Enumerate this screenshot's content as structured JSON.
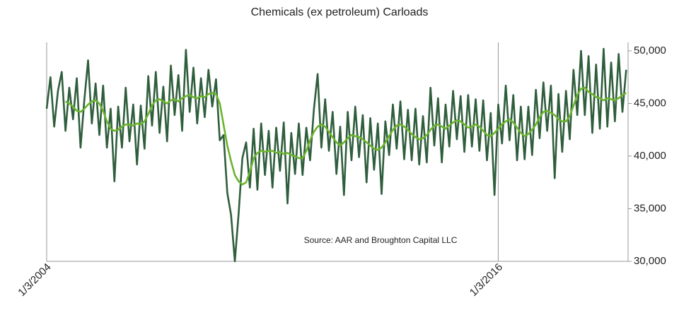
{
  "chart_data": {
    "type": "line",
    "title": "Chemicals  (ex petroleum) Carloads",
    "annotation": "Source: AAR and Broughton Capital LLC",
    "x": [
      2004,
      2004.1,
      2004.2,
      2004.3,
      2004.4,
      2004.5,
      2004.6,
      2004.7,
      2004.8,
      2004.9,
      2005,
      2005.1,
      2005.2,
      2005.3,
      2005.4,
      2005.5,
      2005.6,
      2005.7,
      2005.8,
      2005.9,
      2006,
      2006.1,
      2006.2,
      2006.3,
      2006.4,
      2006.5,
      2006.6,
      2006.7,
      2006.8,
      2006.9,
      2007,
      2007.1,
      2007.2,
      2007.3,
      2007.4,
      2007.5,
      2007.6,
      2007.7,
      2007.8,
      2007.9,
      2008,
      2008.1,
      2008.2,
      2008.3,
      2008.4,
      2008.5,
      2008.6,
      2008.7,
      2008.8,
      2008.9,
      2009,
      2009.1,
      2009.2,
      2009.3,
      2009.4,
      2009.5,
      2009.6,
      2009.7,
      2009.8,
      2009.9,
      2010,
      2010.1,
      2010.2,
      2010.3,
      2010.4,
      2010.5,
      2010.6,
      2010.7,
      2010.8,
      2010.9,
      2011,
      2011.1,
      2011.2,
      2011.3,
      2011.4,
      2011.5,
      2011.6,
      2011.7,
      2011.8,
      2011.9,
      2012,
      2012.1,
      2012.2,
      2012.3,
      2012.4,
      2012.5,
      2012.6,
      2012.7,
      2012.8,
      2012.9,
      2013,
      2013.1,
      2013.2,
      2013.3,
      2013.4,
      2013.5,
      2013.6,
      2013.7,
      2013.8,
      2013.9,
      2014,
      2014.1,
      2014.2,
      2014.3,
      2014.4,
      2014.5,
      2014.6,
      2014.7,
      2014.8,
      2014.9,
      2015,
      2015.1,
      2015.2,
      2015.3,
      2015.4,
      2015.5,
      2015.6,
      2015.7,
      2015.8,
      2015.9,
      2016,
      2016.1,
      2016.2,
      2016.3,
      2016.4,
      2016.5,
      2016.6,
      2016.7,
      2016.8,
      2016.9,
      2017,
      2017.1,
      2017.2,
      2017.3,
      2017.4,
      2017.5,
      2017.6,
      2017.7,
      2017.8,
      2017.9,
      2018,
      2018.1,
      2018.2,
      2018.3,
      2018.4,
      2018.5,
      2018.6,
      2018.7,
      2018.8,
      2018.9,
      2019,
      2019.1,
      2019.2,
      2019.3,
      2019.4
    ],
    "series": [
      {
        "color": "#2f5e3c",
        "values": [
          44500,
          47500,
          42800,
          46200,
          48000,
          42400,
          46500,
          43500,
          47400,
          40800,
          45300,
          49100,
          43100,
          46900,
          42000,
          46700,
          40800,
          44500,
          37600,
          44700,
          40800,
          46500,
          41400,
          44900,
          39200,
          44800,
          40700,
          47600,
          42900,
          48000,
          42200,
          46600,
          41400,
          48600,
          43900,
          47700,
          42400,
          50100,
          44200,
          48400,
          43100,
          47400,
          43700,
          48200,
          44700,
          47300,
          41500,
          42000,
          36500,
          34400,
          30000,
          34500,
          39800,
          41300,
          37000,
          42600,
          36800,
          43100,
          38200,
          42400,
          37000,
          42700,
          38600,
          43200,
          35500,
          42200,
          38300,
          43100,
          38200,
          42700,
          39600,
          44400,
          47800,
          40800,
          45400,
          40500,
          44200,
          38300,
          42800,
          36300,
          44200,
          39600,
          44700,
          39900,
          43900,
          37500,
          43600,
          38700,
          43100,
          36400,
          43300,
          40100,
          44900,
          40700,
          45200,
          39700,
          44400,
          39600,
          44500,
          39200,
          43800,
          39400,
          46500,
          41000,
          45500,
          39400,
          44900,
          40900,
          46200,
          41600,
          45700,
          40400,
          45800,
          40900,
          45400,
          40500,
          45300,
          39600,
          44100,
          36300,
          44900,
          41200,
          46700,
          41500,
          45800,
          39600,
          44700,
          39700,
          44700,
          40100,
          46300,
          41700,
          47000,
          42400,
          46700,
          37900,
          45900,
          40400,
          46200,
          41600,
          48200,
          43900,
          50000,
          43900,
          49500,
          42200,
          48700,
          42600,
          50200,
          42800,
          48900,
          43300,
          49700,
          44200,
          48200
        ]
      },
      {
        "color": "#6ab42d",
        "values": [
          null,
          null,
          null,
          null,
          null,
          45200,
          45000,
          44700,
          44300,
          44200,
          44500,
          44900,
          45200,
          45300,
          45000,
          44300,
          43300,
          42600,
          42400,
          42500,
          42800,
          43000,
          43000,
          42900,
          43100,
          43000,
          43300,
          44000,
          44800,
          45300,
          45400,
          45200,
          45000,
          45300,
          45400,
          45200,
          45500,
          45700,
          45800,
          45600,
          45500,
          45700,
          45600,
          45900,
          46000,
          45900,
          45000,
          43000,
          41000,
          39500,
          38200,
          37600,
          37300,
          37500,
          38500,
          39800,
          40300,
          40500,
          40400,
          40500,
          40500,
          40300,
          40400,
          40200,
          40300,
          40100,
          40000,
          39800,
          39800,
          40500,
          41500,
          42300,
          42800,
          43000,
          42800,
          42300,
          41800,
          41300,
          41000,
          41300,
          41700,
          42000,
          41900,
          41800,
          41600,
          41300,
          41000,
          40700,
          40600,
          40800,
          41300,
          41900,
          42500,
          42900,
          43000,
          42800,
          42500,
          42100,
          41800,
          41600,
          41700,
          42000,
          42500,
          42900,
          43000,
          42800,
          42600,
          42900,
          43200,
          43400,
          43300,
          43000,
          42700,
          42800,
          43000,
          42800,
          42400,
          42000,
          41900,
          42200,
          42600,
          43000,
          43300,
          43500,
          43200,
          42700,
          42200,
          41900,
          42100,
          42500,
          43000,
          43700,
          44200,
          44300,
          44100,
          43900,
          43500,
          43300,
          43300,
          43800,
          44800,
          45800,
          46400,
          46500,
          46100,
          45900,
          45600,
          45500,
          45300,
          45500,
          45400,
          45300,
          45500,
          45800,
          46000
        ]
      }
    ],
    "xlim": [
      2004,
      2019.45
    ],
    "xticks": [
      {
        "value": 2004,
        "label": "1/3/2004"
      },
      {
        "value": 2016,
        "label": "1/3/2016"
      }
    ],
    "ylim": [
      30000,
      50000
    ],
    "yticks": [
      {
        "value": 30000,
        "label": "30,000"
      },
      {
        "value": 35000,
        "label": "35,000"
      },
      {
        "value": 40000,
        "label": "40,000"
      },
      {
        "value": 45000,
        "label": "45,000"
      },
      {
        "value": 50000,
        "label": "50,000"
      }
    ],
    "y_axis_side": "right",
    "grid": true
  }
}
